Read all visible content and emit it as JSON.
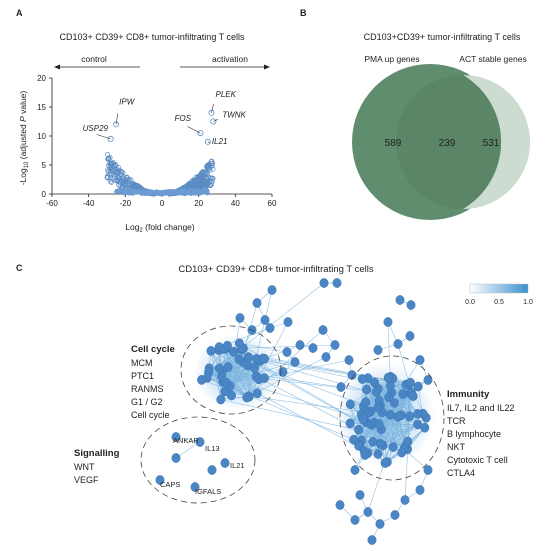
{
  "panel_a": {
    "letter": "A",
    "title": "CD103+ CD39+ CD8+ tumor-infiltrating T cells",
    "control_label": "control",
    "activation_label": "activation",
    "ylabel_prefix": "-Log",
    "ylabel_sub": "10",
    "ylabel_suffix": " (adjusted ",
    "ylabel_p": "P",
    "ylabel_end": " value)",
    "xlabel_prefix": "Log",
    "xlabel_sub": "2",
    "xlabel_suffix": " (fold change)",
    "colors": {
      "point": "#5b8cc4",
      "point_fill": "#6b9bd2"
    }
  },
  "chart_data": {
    "type": "scatter",
    "xlim": [
      -60,
      60
    ],
    "ylim": [
      0,
      20
    ],
    "xticks": [
      "-60",
      "-40",
      "-20",
      "0",
      "20",
      "40",
      "60"
    ],
    "yticks": [
      "0",
      "5",
      "10",
      "15",
      "20"
    ],
    "labeled_points": [
      {
        "gene": "IPW",
        "x": -25,
        "y": 12
      },
      {
        "gene": "USP29",
        "x": -28,
        "y": 9.5
      },
      {
        "gene": "FOS",
        "x": 21,
        "y": 10.5
      },
      {
        "gene": "PLEK",
        "x": 27,
        "y": 14
      },
      {
        "gene": "TWNK",
        "x": 28,
        "y": 12.5
      },
      {
        "gene": "IL21",
        "x": 25,
        "y": 9
      }
    ]
  },
  "panel_b": {
    "letter": "B",
    "title": "CD103+CD39+ tumor-infiltrating T cells",
    "set1_label": "PMA up genes",
    "set2_label": "ACT stable genes",
    "only1": "589",
    "both": "239",
    "only2": "531",
    "colors": {
      "set1": "#5f8d6e",
      "set2": "#c9d9cc",
      "overlap": "#547d61"
    }
  },
  "panel_c": {
    "letter": "C",
    "title": "CD103+ CD39+ CD8+ tumor-infiltrating T cells",
    "legend_ticks": [
      "0.0",
      "0.5",
      "1.0"
    ],
    "cell_cycle": {
      "heading": "Cell cycle",
      "items": [
        "MCM",
        "PTC1",
        "RANMS",
        "G1 / G2",
        "Cell cycle"
      ]
    },
    "immunity": {
      "heading": "Immunity",
      "items": [
        "IL7, IL2 and IL22",
        "TCR",
        "B lymphocyte",
        "NKT",
        "Cytotoxic T cell",
        "CTLA4"
      ]
    },
    "signalling": {
      "heading": "Signalling",
      "items": [
        "WNT",
        "VEGF"
      ]
    },
    "genes": [
      "ANKAR",
      "IL13",
      "IL21",
      "CAPS",
      "IGFALS"
    ],
    "colors": {
      "node": "#4a86c5",
      "edge": "#7fb6e0",
      "gradient_low": "#ffffff",
      "gradient_high": "#3a8fd0"
    }
  }
}
